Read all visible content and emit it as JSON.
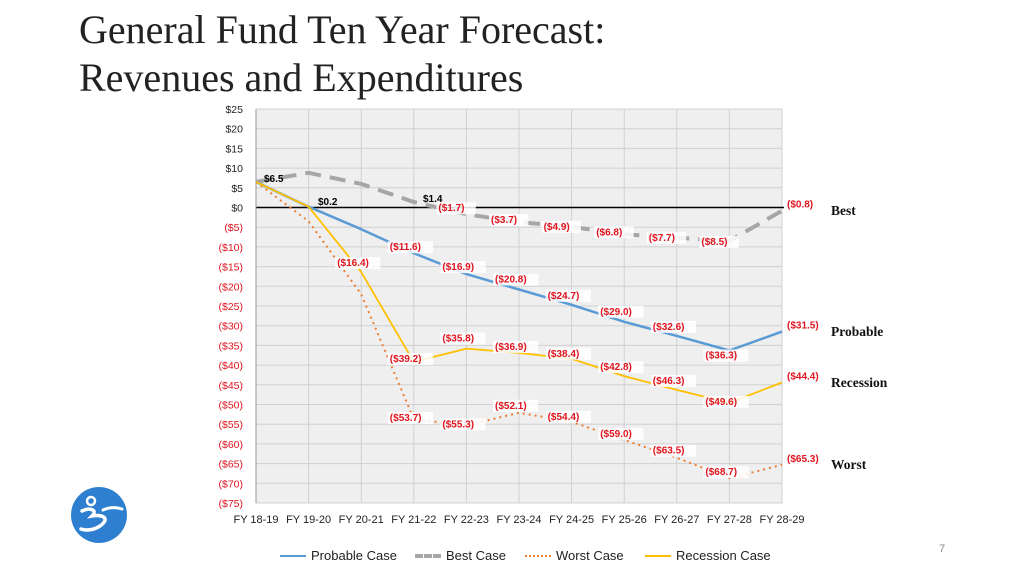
{
  "slide": {
    "title_line1": "General Fund Ten Year Forecast:",
    "title_line2": "Revenues and Expenditures",
    "page_number": "7"
  },
  "colors": {
    "probable": "#5b9bd5",
    "best": "#a6a6a6",
    "worst": "#ed7d31",
    "recession": "#ffc000",
    "label_red": "#e0141e",
    "axis_red": "#e0141e",
    "grid": "#d0d0d0",
    "plot_bg": "#efefef",
    "logo": "#2f7fd0"
  },
  "chart_data": {
    "type": "line",
    "categories": [
      "FY 18-19",
      "FY 19-20",
      "FY 20-21",
      "FY 21-22",
      "FY 22-23",
      "FY 23-24",
      "FY 24-25",
      "FY 25-26",
      "FY 26-27",
      "FY 27-28",
      "FY 28-29"
    ],
    "ylim": [
      -75,
      25
    ],
    "yticks": [
      25,
      20,
      15,
      10,
      5,
      0,
      -5,
      -10,
      -15,
      -20,
      -25,
      -30,
      -35,
      -40,
      -45,
      -50,
      -55,
      -60,
      -65,
      -70,
      -75
    ],
    "ytick_labels": [
      "$25",
      "$20",
      "$15",
      "$10",
      "$5",
      "$0",
      "($5)",
      "($10)",
      "($15)",
      "($20)",
      "($25)",
      "($30)",
      "($35)",
      "($40)",
      "($45)",
      "($50)",
      "($55)",
      "($60)",
      "($65)",
      "($70)",
      "($75)"
    ],
    "grid": true,
    "legend_position": "bottom",
    "series": [
      {
        "key": "probable",
        "name": "Probable Case",
        "values": [
          6.5,
          0.2,
          -5.5,
          -11.6,
          -16.9,
          -20.8,
          -24.7,
          -29.0,
          -32.6,
          -36.3,
          -31.5
        ],
        "end_label": "Probable"
      },
      {
        "key": "best",
        "name": "Best Case",
        "values": [
          6.5,
          8.8,
          6.0,
          1.4,
          -1.7,
          -3.7,
          -4.9,
          -6.8,
          -7.7,
          -8.5,
          -0.8
        ],
        "end_label": "Best"
      },
      {
        "key": "worst",
        "name": "Worst Case",
        "values": [
          6.5,
          -3.5,
          -22.0,
          -53.7,
          -55.3,
          -52.1,
          -54.4,
          -59.0,
          -63.5,
          -68.7,
          -65.3
        ],
        "end_label": "Worst"
      },
      {
        "key": "recession",
        "name": "Recession Case",
        "values": [
          6.5,
          0.2,
          -16.4,
          -39.2,
          -35.8,
          -36.9,
          -38.4,
          -42.8,
          -46.3,
          -49.6,
          -44.4
        ],
        "end_label": "Recession"
      }
    ],
    "data_labels": [
      {
        "series": "probable",
        "index": 0,
        "text": "$6.5",
        "color": "black"
      },
      {
        "series": "probable",
        "index": 1,
        "text": "$0.2",
        "color": "black"
      },
      {
        "series": "best",
        "index": 3,
        "text": "$1.4",
        "color": "black"
      },
      {
        "series": "best",
        "index": 4,
        "text": "($1.7)",
        "color": "red"
      },
      {
        "series": "best",
        "index": 5,
        "text": "($3.7)",
        "color": "red"
      },
      {
        "series": "best",
        "index": 6,
        "text": "($4.9)",
        "color": "red"
      },
      {
        "series": "best",
        "index": 7,
        "text": "($6.8)",
        "color": "red"
      },
      {
        "series": "best",
        "index": 8,
        "text": "($7.7)",
        "color": "red"
      },
      {
        "series": "best",
        "index": 9,
        "text": "($8.5)",
        "color": "red"
      },
      {
        "series": "best",
        "index": 10,
        "text": "($0.8)",
        "color": "red"
      },
      {
        "series": "probable",
        "index": 3,
        "text": "($11.6)",
        "color": "red"
      },
      {
        "series": "probable",
        "index": 4,
        "text": "($16.9)",
        "color": "red"
      },
      {
        "series": "probable",
        "index": 5,
        "text": "($20.8)",
        "color": "red"
      },
      {
        "series": "probable",
        "index": 6,
        "text": "($24.7)",
        "color": "red"
      },
      {
        "series": "probable",
        "index": 7,
        "text": "($29.0)",
        "color": "red"
      },
      {
        "series": "probable",
        "index": 8,
        "text": "($32.6)",
        "color": "red"
      },
      {
        "series": "probable",
        "index": 9,
        "text": "($36.3)",
        "color": "red"
      },
      {
        "series": "probable",
        "index": 10,
        "text": "($31.5)",
        "color": "red"
      },
      {
        "series": "recession",
        "index": 2,
        "text": "($16.4)",
        "color": "red"
      },
      {
        "series": "recession",
        "index": 3,
        "text": "($39.2)",
        "color": "red"
      },
      {
        "series": "recession",
        "index": 4,
        "text": "($35.8)",
        "color": "red"
      },
      {
        "series": "recession",
        "index": 5,
        "text": "($36.9)",
        "color": "red"
      },
      {
        "series": "recession",
        "index": 6,
        "text": "($38.4)",
        "color": "red"
      },
      {
        "series": "recession",
        "index": 7,
        "text": "($42.8)",
        "color": "red"
      },
      {
        "series": "recession",
        "index": 8,
        "text": "($46.3)",
        "color": "red"
      },
      {
        "series": "recession",
        "index": 9,
        "text": "($49.6)",
        "color": "red"
      },
      {
        "series": "recession",
        "index": 10,
        "text": "($44.4)",
        "color": "red"
      },
      {
        "series": "worst",
        "index": 3,
        "text": "($53.7)",
        "color": "red"
      },
      {
        "series": "worst",
        "index": 4,
        "text": "($55.3)",
        "color": "red"
      },
      {
        "series": "worst",
        "index": 5,
        "text": "($52.1)",
        "color": "red"
      },
      {
        "series": "worst",
        "index": 6,
        "text": "($54.4)",
        "color": "red"
      },
      {
        "series": "worst",
        "index": 7,
        "text": "($59.0)",
        "color": "red"
      },
      {
        "series": "worst",
        "index": 8,
        "text": "($63.5)",
        "color": "red"
      },
      {
        "series": "worst",
        "index": 9,
        "text": "($68.7)",
        "color": "red"
      },
      {
        "series": "worst",
        "index": 10,
        "text": "($65.3)",
        "color": "red"
      }
    ]
  }
}
